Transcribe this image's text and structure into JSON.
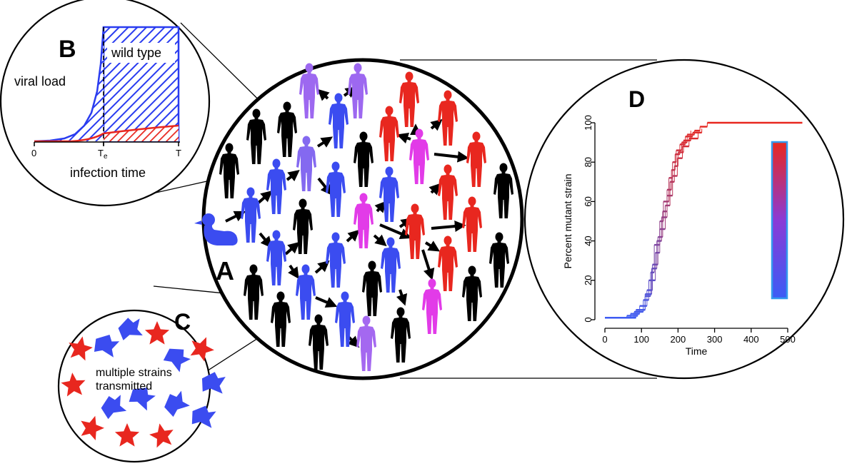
{
  "panels": {
    "A": {
      "letter": "A"
    },
    "B": {
      "letter": "B",
      "label_viral_load": "viral load",
      "label_wild_type": "wild type",
      "x_axis_title": "infection time",
      "tick_start": "0",
      "tick_mid": "T",
      "tick_mid_sub": "e",
      "tick_end": "T"
    },
    "C": {
      "letter": "C",
      "caption_line1": "multiple strains",
      "caption_line2": "transmitted"
    },
    "D": {
      "letter": "D"
    }
  },
  "colors": {
    "wild_type": "#3b4cf0",
    "mutant": "#e8271f",
    "intermediate": "#e23be8",
    "susceptible": "#000000"
  },
  "chart_data": {
    "type": "line",
    "xlabel": "Time",
    "ylabel": "Percent mutant strain",
    "xlim": [
      0,
      540
    ],
    "ylim": [
      0,
      100
    ],
    "xticks": [
      0,
      100,
      200,
      300,
      400,
      500
    ],
    "yticks": [
      0,
      20,
      40,
      60,
      80,
      100
    ],
    "color_scale": {
      "orientation": "vertical",
      "bottom_color": "#3b5cf5",
      "top_color": "#e8271f"
    },
    "series": [
      {
        "x": [
          0,
          60,
          90,
          110,
          125,
          135,
          150,
          160,
          175,
          185,
          195,
          210,
          225,
          245,
          260,
          280,
          540
        ],
        "y": [
          1,
          2,
          5,
          12,
          24,
          38,
          50,
          60,
          72,
          80,
          86,
          90,
          94,
          96,
          98,
          100,
          100
        ]
      },
      {
        "x": [
          0,
          70,
          95,
          115,
          130,
          145,
          158,
          170,
          182,
          192,
          205,
          220,
          240,
          265
        ],
        "y": [
          1,
          3,
          7,
          15,
          28,
          42,
          55,
          66,
          76,
          84,
          89,
          93,
          95,
          97
        ]
      },
      {
        "x": [
          0,
          80,
          105,
          120,
          138,
          150,
          165,
          178,
          190,
          200,
          215,
          235
        ],
        "y": [
          1,
          4,
          10,
          20,
          34,
          46,
          58,
          70,
          78,
          85,
          91,
          96
        ]
      },
      {
        "x": [
          0,
          85,
          110,
          128,
          142,
          155,
          170,
          185,
          198,
          212,
          230,
          255
        ],
        "y": [
          1,
          5,
          13,
          26,
          40,
          52,
          63,
          73,
          82,
          88,
          92,
          95
        ]
      }
    ]
  }
}
